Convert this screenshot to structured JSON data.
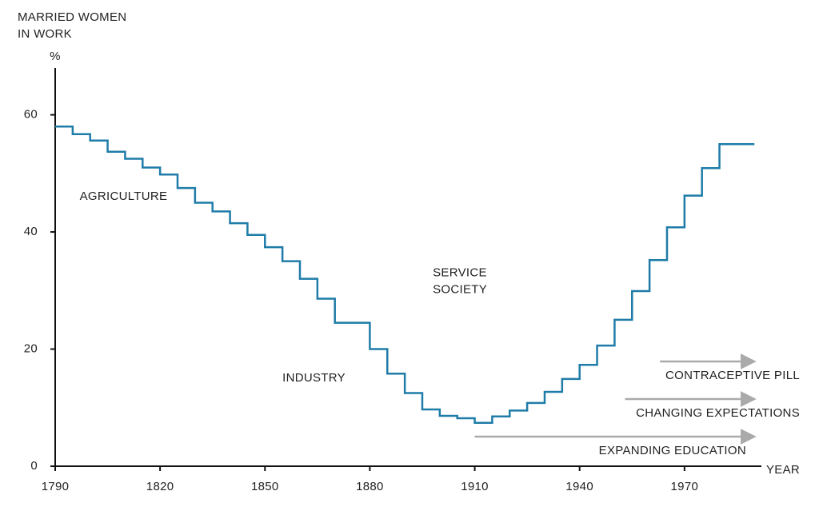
{
  "chart_data": {
    "type": "step",
    "y_label": [
      "MARRIED WOMEN",
      "IN WORK"
    ],
    "y_unit": "%",
    "x_label": "YEAR",
    "x": [
      1790,
      1795,
      1800,
      1805,
      1810,
      1815,
      1820,
      1825,
      1830,
      1835,
      1840,
      1845,
      1850,
      1855,
      1860,
      1865,
      1870,
      1875,
      1880,
      1885,
      1890,
      1895,
      1900,
      1905,
      1910,
      1915,
      1920,
      1925,
      1930,
      1935,
      1940,
      1945,
      1950,
      1955,
      1960,
      1965,
      1970,
      1975,
      1980,
      1990
    ],
    "series": [
      {
        "color": "#1f7ca8",
        "values": [
          58,
          56.7,
          55.6,
          53.7,
          52.5,
          51,
          49.8,
          47.5,
          45,
          43.5,
          41.5,
          39.5,
          37.4,
          35,
          32,
          28.6,
          24.5,
          24.5,
          20,
          15.8,
          12.5,
          9.7,
          8.6,
          8.2,
          7.4,
          8.5,
          9.5,
          10.8,
          12.7,
          14.9,
          17.3,
          20.6,
          25,
          29.9,
          35.2,
          40.8,
          46.2,
          50.9,
          55,
          55
        ]
      }
    ],
    "xlim": [
      1790,
      1992
    ],
    "ylim": [
      0,
      68
    ],
    "xticks": [
      1790,
      1820,
      1850,
      1880,
      1910,
      1940,
      1970
    ],
    "yticks": [
      0,
      20,
      40,
      60
    ],
    "eras": [
      {
        "label": "AGRICULTURE",
        "year": 1797,
        "level": 46
      },
      {
        "label": "INDUSTRY",
        "year": 1855,
        "level": 15
      },
      {
        "label": [
          "SERVICE",
          "SOCIETY"
        ],
        "year": 1898,
        "level": 33
      }
    ],
    "trends": [
      {
        "label": "CONTRACEPTIVE PILL",
        "start": 1963,
        "end": 1990
      },
      {
        "label": "CHANGING EXPECTATIONS",
        "start": 1953,
        "end": 1990
      },
      {
        "label": "EXPANDING EDUCATION",
        "start": 1910,
        "end": 1990
      }
    ]
  }
}
